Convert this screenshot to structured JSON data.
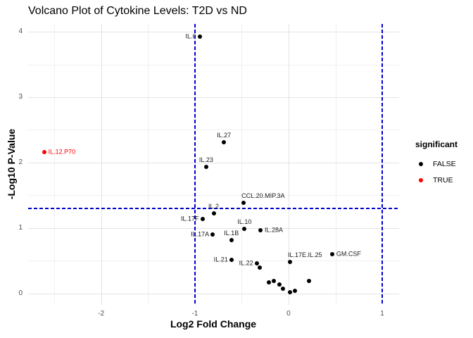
{
  "title": "Volcano Plot of Cytokine Levels: T2D vs ND",
  "axes": {
    "x_label": "Log2 Fold Change",
    "y_label": "-Log10 P-Value"
  },
  "legend": {
    "title": "significant",
    "items": [
      {
        "label": "FALSE",
        "color": "#000000"
      },
      {
        "label": "TRUE",
        "color": "#ff0000"
      }
    ]
  },
  "chart_data": {
    "type": "scatter",
    "title": "Volcano Plot of Cytokine Levels: T2D vs ND",
    "xlabel": "Log2 Fold Change",
    "ylabel": "-Log10 P-Value",
    "xlim": [
      -2.78,
      1.18
    ],
    "ylim": [
      -0.175,
      4.12
    ],
    "x_ticks": [
      -2,
      -1,
      0,
      1
    ],
    "y_ticks": [
      0,
      1,
      2,
      3,
      4
    ],
    "x_minor_ticks": [
      -2.5,
      -1.5,
      -0.5,
      0.5
    ],
    "y_minor_ticks": [
      0.5,
      1.5,
      2.5,
      3.5
    ],
    "grid": true,
    "legend_position": "right",
    "threshold_lines": {
      "h_pvalue": 1.3,
      "v_fold_change": [
        -1,
        1
      ],
      "color": "#0000d0"
    },
    "colors": {
      "FALSE": "#000000",
      "TRUE": "#ff0000"
    },
    "points": [
      {
        "label": "IL.6",
        "x": -0.95,
        "y": 3.93,
        "significant": "FALSE",
        "label_pos": "left"
      },
      {
        "label": "IL.12.P70",
        "x": -2.61,
        "y": 2.16,
        "significant": "TRUE",
        "label_pos": "right"
      },
      {
        "label": "IL.27",
        "x": -0.69,
        "y": 2.31,
        "significant": "FALSE",
        "label_pos": "above"
      },
      {
        "label": "IL.23",
        "x": -0.88,
        "y": 1.94,
        "significant": "FALSE",
        "label_pos": "above"
      },
      {
        "label": "CCL.20.MIP.3A",
        "x": -0.48,
        "y": 1.39,
        "significant": "FALSE",
        "label_pos": "above-right"
      },
      {
        "label": "IL.2",
        "x": -0.8,
        "y": 1.22,
        "significant": "FALSE",
        "label_pos": "above"
      },
      {
        "label": "IL.17F",
        "x": -0.92,
        "y": 1.14,
        "significant": "FALSE",
        "label_pos": "left"
      },
      {
        "label": "IL.17A",
        "x": -0.81,
        "y": 0.9,
        "significant": "FALSE",
        "label_pos": "left"
      },
      {
        "label": "IL.1B",
        "x": -0.61,
        "y": 0.82,
        "significant": "FALSE",
        "label_pos": "above"
      },
      {
        "label": "IL.10",
        "x": -0.47,
        "y": 0.99,
        "significant": "FALSE",
        "label_pos": "above"
      },
      {
        "label": "IL.28A",
        "x": -0.3,
        "y": 0.97,
        "significant": "FALSE",
        "label_pos": "right"
      },
      {
        "label": "IL.21",
        "x": -0.61,
        "y": 0.51,
        "significant": "FALSE",
        "label_pos": "left"
      },
      {
        "label": "IL.22",
        "x": -0.34,
        "y": 0.46,
        "significant": "FALSE",
        "label_pos": "left"
      },
      {
        "label": "IL.17E.IL.25",
        "x": 0.015,
        "y": 0.48,
        "significant": "FALSE",
        "label_pos": "above-right"
      },
      {
        "label": "GM.CSF",
        "x": 0.465,
        "y": 0.6,
        "significant": "FALSE",
        "label_pos": "right"
      },
      {
        "label": "",
        "x": -0.31,
        "y": 0.4,
        "significant": "FALSE",
        "label_pos": null
      },
      {
        "label": "",
        "x": -0.21,
        "y": 0.17,
        "significant": "FALSE",
        "label_pos": null
      },
      {
        "label": "",
        "x": -0.155,
        "y": 0.195,
        "significant": "FALSE",
        "label_pos": null
      },
      {
        "label": "",
        "x": -0.1,
        "y": 0.14,
        "significant": "FALSE",
        "label_pos": null
      },
      {
        "label": "",
        "x": -0.06,
        "y": 0.07,
        "significant": "FALSE",
        "label_pos": null
      },
      {
        "label": "",
        "x": 0.015,
        "y": 0.015,
        "significant": "FALSE",
        "label_pos": null
      },
      {
        "label": "",
        "x": 0.07,
        "y": 0.045,
        "significant": "FALSE",
        "label_pos": null
      },
      {
        "label": "",
        "x": 0.215,
        "y": 0.195,
        "significant": "FALSE",
        "label_pos": null
      }
    ]
  }
}
